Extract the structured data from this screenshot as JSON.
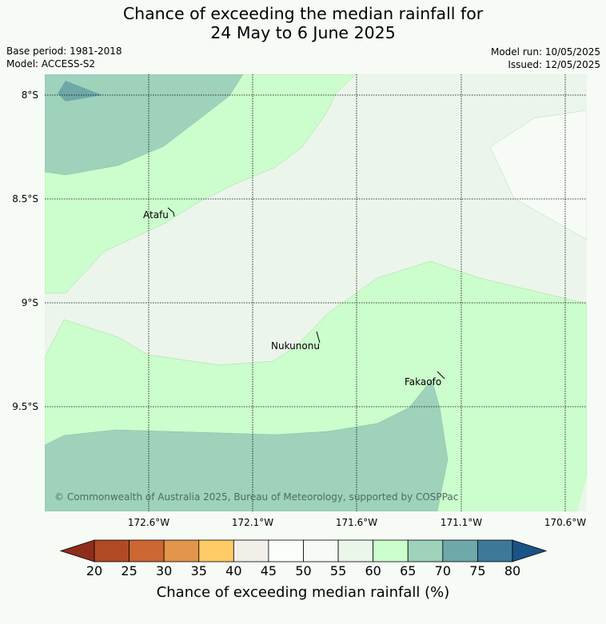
{
  "header": {
    "title_line1": "Chance of exceeding the median rainfall for",
    "title_line2": "24 May to 6 June 2025",
    "base_period": "Base period: 1981-2018",
    "model": "Model: ACCESS-S2",
    "model_run": "Model run: 10/05/2025",
    "issued": "Issued: 12/05/2025"
  },
  "map": {
    "lat_labels": [
      "8°S",
      "8.5°S",
      "9°S",
      "9.5°S"
    ],
    "lon_labels": [
      "172.6°W",
      "172.1°W",
      "171.6°W",
      "171.1°W",
      "170.6°W"
    ],
    "places": [
      {
        "name": "Atafu"
      },
      {
        "name": "Nukunonu"
      },
      {
        "name": "Fakaofo"
      }
    ],
    "copyright": "© Commonwealth of Australia 2025, Bureau of Meteorology, supported by COSPPac"
  },
  "colorbar": {
    "ticks": [
      "20",
      "25",
      "30",
      "35",
      "40",
      "45",
      "50",
      "55",
      "60",
      "65",
      "70",
      "75",
      "80"
    ],
    "colors": [
      "#8f2d1a",
      "#b04a25",
      "#cc6633",
      "#e3954b",
      "#fecb66",
      "#f2efe9",
      "#fafefa",
      "#f6fbf6",
      "#eaf6ea",
      "#ccfdcc",
      "#9ed2bb",
      "#6ea8a8",
      "#3d7899",
      "#1a5385"
    ],
    "label": "Chance of exceeding median rainfall (%)"
  }
}
